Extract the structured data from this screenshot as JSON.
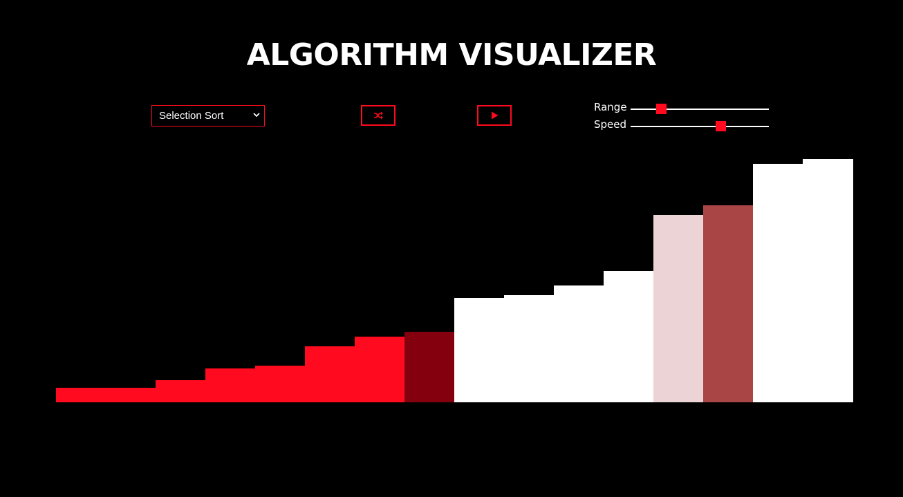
{
  "header": {
    "title": "ALGORITHM VISUALIZER"
  },
  "controls": {
    "algorithm_select": {
      "value": "Selection Sort"
    },
    "shuffle_icon": "shuffle-icon",
    "play_icon": "play-icon",
    "range": {
      "label": "Range",
      "value_fraction": 0.22
    },
    "speed": {
      "label": "Speed",
      "value_fraction": 0.65
    }
  },
  "colors": {
    "accent": "#ff0a1e",
    "sorted": "#ff0a1e",
    "current": "#85000e",
    "compare": "#a94545",
    "min_candidate": "#ecd4d6",
    "unsorted": "#ffffff",
    "background": "#000000"
  },
  "array": {
    "max_value": 300,
    "bars": [
      {
        "value": 18,
        "state": "sorted"
      },
      {
        "value": 18,
        "state": "sorted"
      },
      {
        "value": 27,
        "state": "sorted"
      },
      {
        "value": 42,
        "state": "sorted"
      },
      {
        "value": 45,
        "state": "sorted"
      },
      {
        "value": 69,
        "state": "sorted"
      },
      {
        "value": 81,
        "state": "sorted"
      },
      {
        "value": 87,
        "state": "current"
      },
      {
        "value": 129,
        "state": "unsorted"
      },
      {
        "value": 132,
        "state": "unsorted"
      },
      {
        "value": 144,
        "state": "unsorted"
      },
      {
        "value": 162,
        "state": "unsorted"
      },
      {
        "value": 231,
        "state": "min_candidate"
      },
      {
        "value": 243,
        "state": "compare"
      },
      {
        "value": 294,
        "state": "unsorted"
      },
      {
        "value": 300,
        "state": "unsorted"
      }
    ]
  }
}
